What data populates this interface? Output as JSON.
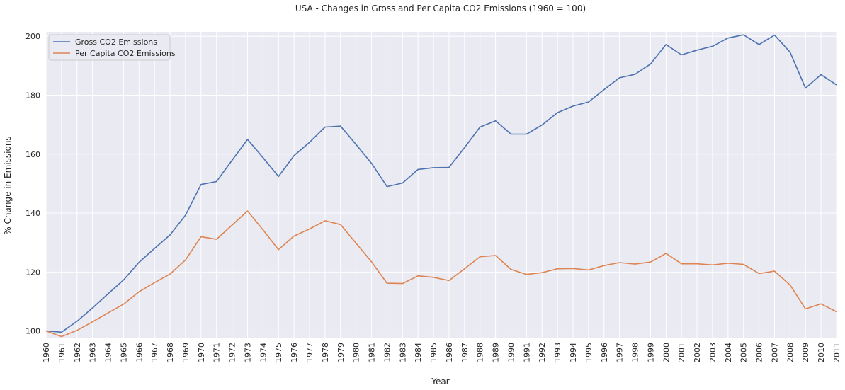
{
  "chart_data": {
    "type": "line",
    "title": "USA - Changes in Gross and Per Capita CO2 Emissions (1960 = 100)",
    "xlabel": "Year",
    "ylabel": "% Change in Emissions",
    "x": [
      1960,
      1961,
      1962,
      1963,
      1964,
      1965,
      1966,
      1967,
      1968,
      1969,
      1970,
      1971,
      1972,
      1973,
      1974,
      1975,
      1976,
      1977,
      1978,
      1979,
      1980,
      1981,
      1982,
      1983,
      1984,
      1985,
      1986,
      1987,
      1988,
      1989,
      1990,
      1991,
      1992,
      1993,
      1994,
      1995,
      1996,
      1997,
      1998,
      1999,
      2000,
      2001,
      2002,
      2003,
      2004,
      2005,
      2006,
      2007,
      2008,
      2009,
      2010,
      2011
    ],
    "xlim": [
      1960,
      2011
    ],
    "ylim": [
      97.5,
      201.5
    ],
    "yticks": [
      100,
      120,
      140,
      160,
      180,
      200
    ],
    "grid": true,
    "legend_position": "top-left",
    "series": [
      {
        "name": "Gross CO2 Emissions",
        "color": "#4c72b0",
        "values": [
          100.0,
          99.6,
          103.3,
          107.8,
          112.6,
          117.3,
          123.3,
          128.0,
          132.6,
          139.3,
          149.7,
          150.7,
          157.9,
          165.0,
          158.8,
          152.4,
          159.5,
          164.0,
          169.2,
          169.5,
          163.3,
          156.9,
          149.0,
          150.2,
          154.8,
          155.4,
          155.5,
          162.2,
          169.2,
          171.3,
          166.8,
          166.8,
          169.9,
          174.1,
          176.3,
          177.7,
          181.9,
          185.9,
          187.1,
          190.6,
          197.2,
          193.7,
          195.3,
          196.6,
          199.4,
          200.5,
          197.2,
          200.4,
          194.6,
          182.4,
          187.0,
          183.5
        ]
      },
      {
        "name": "Per Capita CO2 Emissions",
        "color": "#dd8452",
        "values": [
          100.0,
          98.1,
          100.2,
          103.1,
          106.1,
          109.1,
          113.3,
          116.4,
          119.3,
          124.1,
          132.0,
          131.1,
          135.9,
          140.7,
          134.3,
          127.6,
          132.2,
          134.6,
          137.4,
          136.1,
          129.8,
          123.5,
          116.2,
          116.1,
          118.7,
          118.2,
          117.1,
          121.1,
          125.2,
          125.6,
          120.9,
          119.2,
          119.8,
          121.1,
          121.2,
          120.7,
          122.2,
          123.2,
          122.7,
          123.4,
          126.3,
          122.8,
          122.8,
          122.4,
          123.0,
          122.6,
          119.5,
          120.3,
          115.6,
          107.5,
          109.2,
          106.5
        ]
      }
    ]
  }
}
